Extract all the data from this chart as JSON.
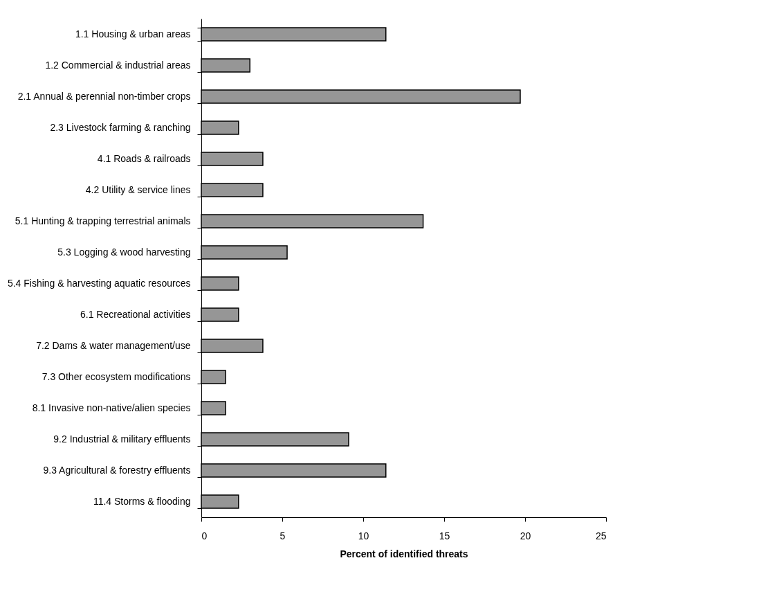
{
  "chart_data": {
    "type": "bar",
    "orientation": "horizontal",
    "xlabel": "Percent of identified threats",
    "categories": [
      "1.1 Housing & urban areas",
      "1.2 Commercial & industrial areas",
      "2.1 Annual & perennial non-timber crops",
      "2.3 Livestock farming & ranching",
      "4.1 Roads & railroads",
      "4.2 Utility & service lines",
      "5.1 Hunting & trapping terrestrial animals",
      "5.3 Logging & wood harvesting",
      "5.4 Fishing & harvesting aquatic resources",
      "6.1 Recreational activities",
      "7.2 Dams & water management/use",
      "7.3 Other ecosystem modifications",
      "8.1 Invasive non-native/alien species",
      "9.2 Industrial & military effluents",
      "9.3 Agricultural & forestry effluents",
      "11.4 Storms & flooding"
    ],
    "values": [
      11.4,
      3.0,
      19.7,
      2.3,
      3.8,
      3.8,
      13.7,
      5.3,
      2.3,
      2.3,
      3.8,
      1.5,
      1.5,
      9.1,
      11.4,
      2.3
    ],
    "color": "#969696",
    "xlim": [
      0,
      25
    ],
    "xticks": [
      0,
      5,
      10,
      15,
      20,
      25
    ],
    "grid": false
  }
}
